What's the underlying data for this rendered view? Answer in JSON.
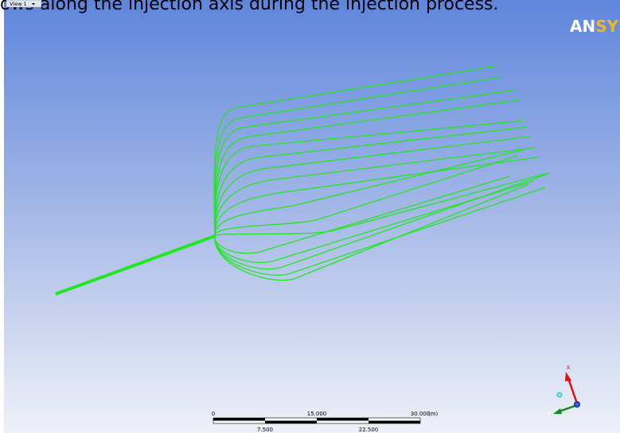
{
  "caption": "ows along the injection axis during the injection process.",
  "view_tab": "View 1",
  "logo": {
    "first": "AN",
    "second": "SYS"
  },
  "scale_bar": {
    "top_labels": [
      "0",
      "15.000",
      "30.000"
    ],
    "unit": "(m)",
    "bottom_labels": [
      "7.500",
      "22.500"
    ]
  },
  "triad": {
    "x_label": "X",
    "y_label": "Y"
  }
}
